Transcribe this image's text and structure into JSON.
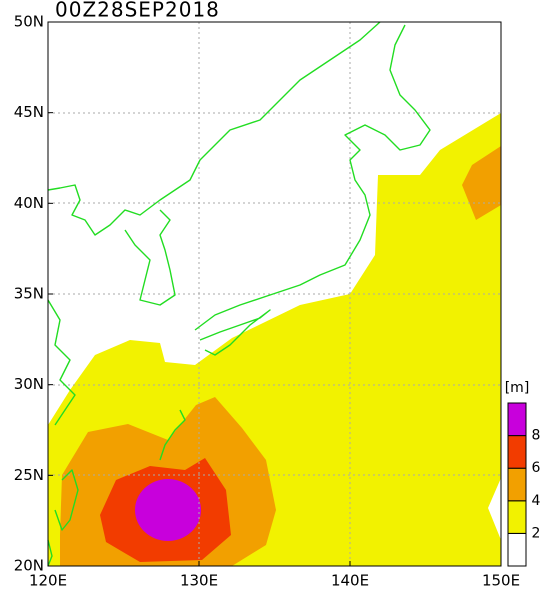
{
  "title": "00Z28SEP2018",
  "lat_labels": [
    "50N",
    "45N",
    "40N",
    "35N",
    "30N",
    "25N",
    "20N"
  ],
  "lon_labels": [
    "120E",
    "130E",
    "140E",
    "150E"
  ],
  "colorbar": {
    "unit": "[m]",
    "colors": [
      "#ffffff",
      "#f2f200",
      "#f2a000",
      "#f23c00",
      "#c800dc"
    ],
    "labels": [
      "2",
      "4",
      "6",
      "8"
    ]
  }
}
